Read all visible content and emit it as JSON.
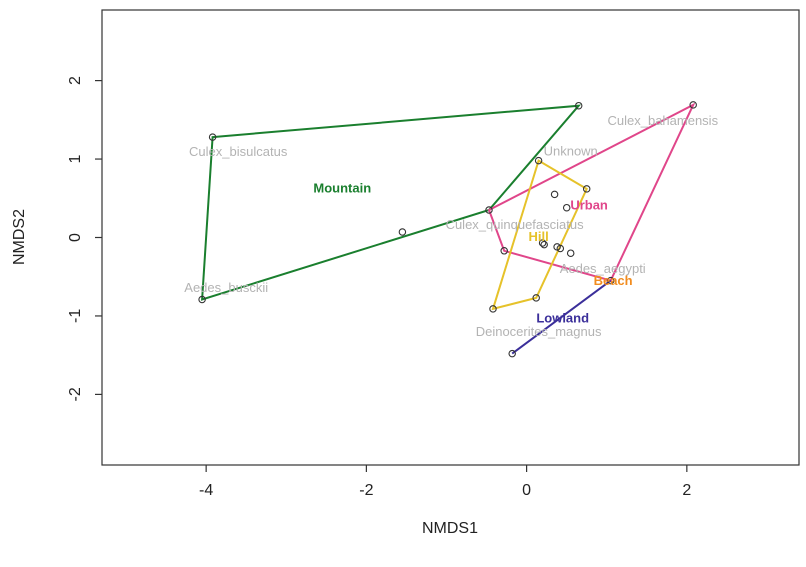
{
  "chart_data": {
    "type": "scatter",
    "title": "",
    "xlabel": "NMDS1",
    "ylabel": "NMDS2",
    "xlim": [
      -5.3,
      3.4
    ],
    "ylim": [
      -2.9,
      2.9
    ],
    "xticks": [
      -4,
      -2,
      0,
      2
    ],
    "yticks": [
      -2,
      -1,
      0,
      1,
      2
    ],
    "xtick_labels": [
      "-4",
      "-2",
      "0",
      "2"
    ],
    "ytick_labels": [
      "-2",
      "-1",
      "0",
      "1",
      "2"
    ],
    "grid": false,
    "legend": "none",
    "points": [
      {
        "x": -3.92,
        "y": 1.28
      },
      {
        "x": 0.65,
        "y": 1.68
      },
      {
        "x": 2.08,
        "y": 1.69
      },
      {
        "x": -4.05,
        "y": -0.79
      },
      {
        "x": -1.55,
        "y": 0.07
      },
      {
        "x": -0.47,
        "y": 0.35
      },
      {
        "x": 0.15,
        "y": 0.98
      },
      {
        "x": 0.75,
        "y": 0.62
      },
      {
        "x": 0.35,
        "y": 0.55
      },
      {
        "x": 0.5,
        "y": 0.38
      },
      {
        "x": -0.28,
        "y": -0.17
      },
      {
        "x": 0.2,
        "y": -0.07
      },
      {
        "x": 0.22,
        "y": -0.09
      },
      {
        "x": 0.38,
        "y": -0.12
      },
      {
        "x": 0.42,
        "y": -0.14
      },
      {
        "x": 0.55,
        "y": -0.2
      },
      {
        "x": 1.05,
        "y": -0.55
      },
      {
        "x": 0.12,
        "y": -0.77
      },
      {
        "x": -0.42,
        "y": -0.91
      },
      {
        "x": -0.18,
        "y": -1.48
      }
    ],
    "hulls": [
      {
        "name": "Mountain",
        "color": "#1a7f2e",
        "vertices": [
          [
            -3.92,
            1.28
          ],
          [
            0.65,
            1.68
          ],
          [
            -0.47,
            0.35
          ],
          [
            -4.05,
            -0.79
          ]
        ]
      },
      {
        "name": "Urban",
        "color": "#e0468a",
        "vertices": [
          [
            2.08,
            1.69
          ],
          [
            1.05,
            -0.55
          ],
          [
            -0.28,
            -0.17
          ],
          [
            -0.47,
            0.35
          ]
        ]
      },
      {
        "name": "Hill",
        "color": "#e6c22a",
        "vertices": [
          [
            0.15,
            0.98
          ],
          [
            0.75,
            0.62
          ],
          [
            0.12,
            -0.77
          ],
          [
            -0.42,
            -0.91
          ]
        ]
      },
      {
        "name": "Lowland",
        "color": "#3b2f9a",
        "vertices": [
          [
            -0.18,
            -1.48
          ],
          [
            1.05,
            -0.55
          ]
        ]
      },
      {
        "name": "Beach",
        "color": "#f28c1e",
        "vertices": []
      }
    ],
    "group_labels": [
      {
        "text": "Mountain",
        "x": -2.3,
        "y": 0.62,
        "color": "#1a7f2e"
      },
      {
        "text": "Urban",
        "x": 0.78,
        "y": 0.4,
        "color": "#e0468a"
      },
      {
        "text": "Hill",
        "x": 0.15,
        "y": 0.0,
        "color": "#e6c22a"
      },
      {
        "text": "Beach",
        "x": 1.08,
        "y": -0.56,
        "color": "#f28c1e"
      },
      {
        "text": "Lowland",
        "x": 0.45,
        "y": -1.04,
        "color": "#3b2f9a"
      }
    ],
    "species_labels": [
      {
        "text": "Culex_bisulcatus",
        "x": -3.6,
        "y": 1.08
      },
      {
        "text": "Unknown",
        "x": 0.55,
        "y": 1.09
      },
      {
        "text": "Culex_bahamensis",
        "x": 1.7,
        "y": 1.48
      },
      {
        "text": "Culex_quinquefasciatus",
        "x": -0.15,
        "y": 0.15
      },
      {
        "text": "Aedes_aegypti",
        "x": 0.95,
        "y": -0.41
      },
      {
        "text": "Aedes_busckii",
        "x": -3.75,
        "y": -0.65
      },
      {
        "text": "Deinocerites_magnus",
        "x": 0.15,
        "y": -1.21
      }
    ]
  }
}
